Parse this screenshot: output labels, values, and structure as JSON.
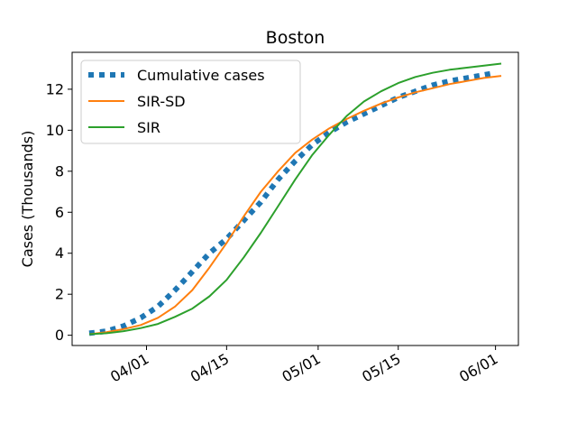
{
  "chart_data": {
    "type": "line",
    "title": "Boston",
    "xlabel": "",
    "ylabel": "Cases (Thousands)",
    "xlim": [
      "2020-03-19",
      "2020-06-05"
    ],
    "ylim": [
      -0.5,
      13.8
    ],
    "xticks": [
      {
        "date": "2020-04-01",
        "label": "04/01"
      },
      {
        "date": "2020-04-15",
        "label": "04/15"
      },
      {
        "date": "2020-05-01",
        "label": "05/01"
      },
      {
        "date": "2020-05-15",
        "label": "05/15"
      },
      {
        "date": "2020-06-01",
        "label": "06/01"
      }
    ],
    "yticks": [
      0,
      2,
      4,
      6,
      8,
      10,
      12
    ],
    "grid": false,
    "legend_position": "top-left",
    "series": [
      {
        "name": "Cumulative cases",
        "color": "#1f77b4",
        "style": "dotted",
        "points": [
          [
            "2020-03-22",
            0.1
          ],
          [
            "2020-03-25",
            0.2
          ],
          [
            "2020-03-28",
            0.45
          ],
          [
            "2020-03-31",
            0.85
          ],
          [
            "2020-04-03",
            1.4
          ],
          [
            "2020-04-06",
            2.2
          ],
          [
            "2020-04-09",
            3.1
          ],
          [
            "2020-04-12",
            4.0
          ],
          [
            "2020-04-15",
            4.7
          ],
          [
            "2020-04-18",
            5.6
          ],
          [
            "2020-04-21",
            6.5
          ],
          [
            "2020-04-24",
            7.6
          ],
          [
            "2020-04-27",
            8.5
          ],
          [
            "2020-04-30",
            9.3
          ],
          [
            "2020-05-03",
            9.9
          ],
          [
            "2020-05-06",
            10.4
          ],
          [
            "2020-05-09",
            10.8
          ],
          [
            "2020-05-12",
            11.2
          ],
          [
            "2020-05-15",
            11.6
          ],
          [
            "2020-05-18",
            11.9
          ],
          [
            "2020-05-21",
            12.2
          ],
          [
            "2020-05-24",
            12.4
          ],
          [
            "2020-05-27",
            12.55
          ],
          [
            "2020-05-30",
            12.7
          ],
          [
            "2020-06-01",
            12.8
          ]
        ]
      },
      {
        "name": "SIR-SD",
        "color": "#ff7f0e",
        "style": "solid",
        "points": [
          [
            "2020-03-22",
            0.05
          ],
          [
            "2020-03-25",
            0.15
          ],
          [
            "2020-03-28",
            0.3
          ],
          [
            "2020-03-31",
            0.5
          ],
          [
            "2020-04-03",
            0.85
          ],
          [
            "2020-04-06",
            1.4
          ],
          [
            "2020-04-09",
            2.2
          ],
          [
            "2020-04-12",
            3.3
          ],
          [
            "2020-04-15",
            4.5
          ],
          [
            "2020-04-18",
            5.8
          ],
          [
            "2020-04-21",
            7.0
          ],
          [
            "2020-04-24",
            8.0
          ],
          [
            "2020-04-27",
            8.9
          ],
          [
            "2020-04-30",
            9.55
          ],
          [
            "2020-05-03",
            10.1
          ],
          [
            "2020-05-06",
            10.55
          ],
          [
            "2020-05-09",
            10.95
          ],
          [
            "2020-05-12",
            11.3
          ],
          [
            "2020-05-15",
            11.6
          ],
          [
            "2020-05-18",
            11.85
          ],
          [
            "2020-05-21",
            12.05
          ],
          [
            "2020-05-24",
            12.25
          ],
          [
            "2020-05-27",
            12.4
          ],
          [
            "2020-05-30",
            12.55
          ],
          [
            "2020-06-02",
            12.65
          ]
        ]
      },
      {
        "name": "SIR",
        "color": "#2ca02c",
        "style": "solid",
        "points": [
          [
            "2020-03-22",
            0.05
          ],
          [
            "2020-03-25",
            0.1
          ],
          [
            "2020-03-28",
            0.2
          ],
          [
            "2020-03-31",
            0.35
          ],
          [
            "2020-04-03",
            0.55
          ],
          [
            "2020-04-06",
            0.9
          ],
          [
            "2020-04-09",
            1.3
          ],
          [
            "2020-04-12",
            1.9
          ],
          [
            "2020-04-15",
            2.7
          ],
          [
            "2020-04-18",
            3.8
          ],
          [
            "2020-04-21",
            5.0
          ],
          [
            "2020-04-24",
            6.3
          ],
          [
            "2020-04-27",
            7.6
          ],
          [
            "2020-04-30",
            8.8
          ],
          [
            "2020-05-03",
            9.8
          ],
          [
            "2020-05-06",
            10.7
          ],
          [
            "2020-05-09",
            11.4
          ],
          [
            "2020-05-12",
            11.9
          ],
          [
            "2020-05-15",
            12.3
          ],
          [
            "2020-05-18",
            12.6
          ],
          [
            "2020-05-21",
            12.8
          ],
          [
            "2020-05-24",
            12.95
          ],
          [
            "2020-05-27",
            13.05
          ],
          [
            "2020-05-30",
            13.15
          ],
          [
            "2020-06-02",
            13.25
          ]
        ]
      }
    ]
  }
}
